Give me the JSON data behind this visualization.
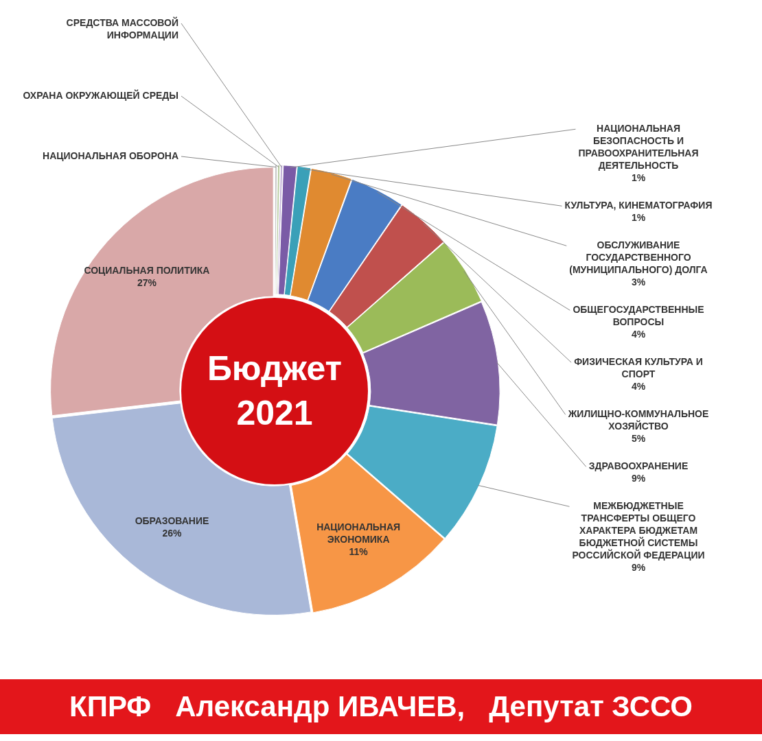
{
  "chart_data": {
    "type": "donut",
    "title": "Бюджет 2021",
    "legend": false,
    "categories": [
      "НАЦИОНАЛЬНАЯ ОБОРОНА",
      "ОХРАНА ОКРУЖАЮЩЕЙ СРЕДЫ",
      "СРЕДСТВА МАССОВОЙ ИНФОРМАЦИИ",
      "НАЦИОНАЛЬНАЯ БЕЗОПАСНОСТЬ И ПРАВООХРАНИТЕЛЬНАЯ ДЕЯТЕЛЬНОСТЬ",
      "КУЛЬТУРА, КИНЕМАТОГРАФИЯ",
      "ОБСЛУЖИВАНИЕ ГОСУДАРСТВЕННОГО (МУНИЦИПАЛЬНОГО) ДОЛГА",
      "ОБЩЕГОСУДАРСТВЕННЫЕ ВОПРОСЫ",
      "ФИЗИЧЕСКАЯ КУЛЬТУРА И СПОРТ",
      "ЖИЛИЩНО-КОММУНАЛЬНОЕ ХОЗЯЙСТВО",
      "ЗДРАВООХРАНЕНИЕ",
      "МЕЖБЮДЖЕТНЫЕ ТРАНСФЕРТЫ ОБЩЕГО ХАРАКТЕРА БЮДЖЕТАМ БЮДЖЕТНОЙ СИСТЕМЫ РОССИЙСКОЙ ФЕДЕРАЦИИ",
      "НАЦИОНАЛЬНАЯ ЭКОНОМИКА",
      "ОБРАЗОВАНИЕ",
      "СОЦИАЛЬНАЯ ПОЛИТИКА"
    ],
    "values": [
      0.2,
      0.2,
      0.2,
      1,
      1,
      3,
      4,
      4,
      5,
      9,
      9,
      11,
      26,
      27
    ],
    "value_labels": [
      null,
      null,
      null,
      "1%",
      "1%",
      "3%",
      "4%",
      "4%",
      "5%",
      "9%",
      "9%",
      "11%",
      "26%",
      "27%"
    ],
    "colors": [
      "#c8c8c8",
      "#b8cca0",
      "#c4b4d8",
      "#7a5ba6",
      "#3aa0b8",
      "#e08a30",
      "#4a7cc4",
      "#c0504d",
      "#9bbb59",
      "#8064a2",
      "#4bacc6",
      "#f79646",
      "#a9b8d8",
      "#d9a8a8"
    ],
    "annotations": [
      "КПРФ   Александр ИВАЧЕВ,   Депутат ЗССО"
    ]
  }
}
